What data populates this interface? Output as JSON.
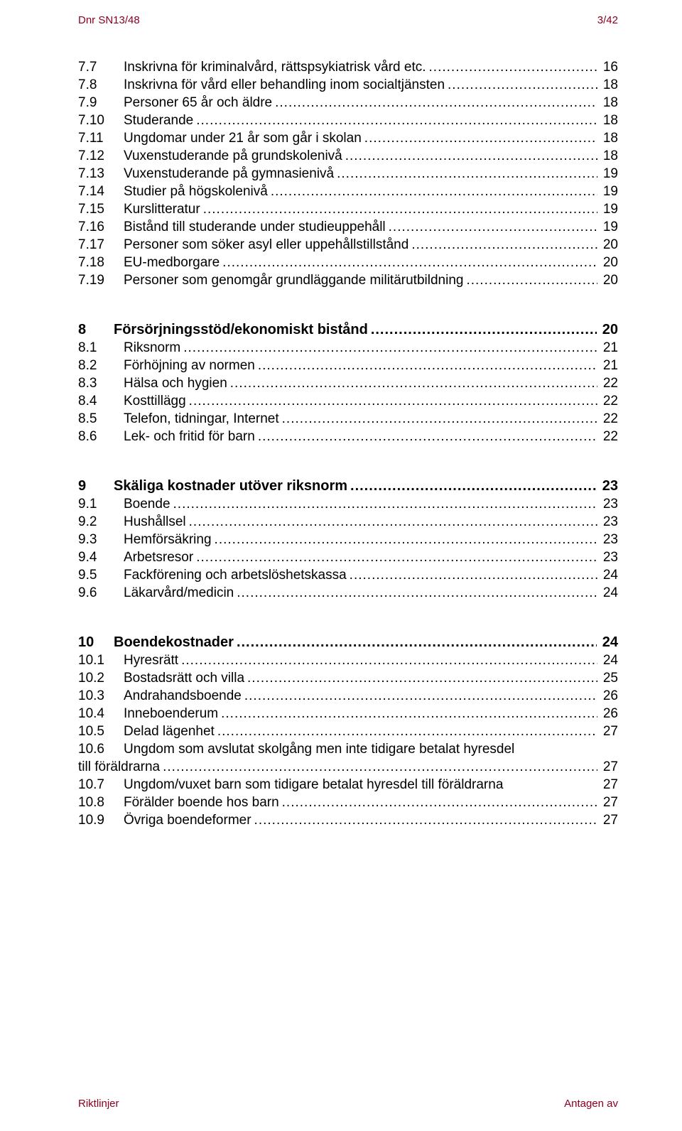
{
  "header": {
    "left": "Dnr SN13/48",
    "right": "3/42"
  },
  "footer": {
    "left": "Riktlinjer",
    "right": "Antagen av"
  },
  "toc": {
    "groups": [
      {
        "heading": null,
        "items": [
          {
            "num": "7.7",
            "label": "Inskrivna för kriminalvård, rättspsykiatrisk vård etc.",
            "page": "16"
          },
          {
            "num": "7.8",
            "label": "Inskrivna för vård eller behandling inom socialtjänsten",
            "page": "18"
          },
          {
            "num": "7.9",
            "label": "Personer 65 år och äldre",
            "page": "18"
          },
          {
            "num": "7.10",
            "label": "Studerande",
            "page": "18"
          },
          {
            "num": "7.11",
            "label": "Ungdomar under 21 år som går i skolan",
            "page": "18"
          },
          {
            "num": "7.12",
            "label": "Vuxenstuderande på grundskolenivå",
            "page": "18"
          },
          {
            "num": "7.13",
            "label": "Vuxenstuderande på gymnasienivå",
            "page": "19"
          },
          {
            "num": "7.14",
            "label": "Studier på högskolenivå",
            "page": "19"
          },
          {
            "num": "7.15",
            "label": "Kurslitteratur",
            "page": "19"
          },
          {
            "num": "7.16",
            "label": "Bistånd till studerande under studieuppehåll",
            "page": "19"
          },
          {
            "num": "7.17",
            "label": "Personer som söker asyl eller uppehållstillstånd",
            "page": "20"
          },
          {
            "num": "7.18",
            "label": "EU-medborgare",
            "page": "20"
          },
          {
            "num": "7.19",
            "label": "Personer som genomgår grundläggande militärutbildning",
            "page": "20"
          }
        ]
      },
      {
        "heading": {
          "num": "8",
          "label": "Försörjningsstöd/ekonomiskt bistånd",
          "page": "20"
        },
        "items": [
          {
            "num": "8.1",
            "label": "Riksnorm",
            "page": "21"
          },
          {
            "num": "8.2",
            "label": "Förhöjning av normen",
            "page": "21"
          },
          {
            "num": "8.3",
            "label": "Hälsa och hygien",
            "page": "22"
          },
          {
            "num": "8.4",
            "label": "Kosttillägg",
            "page": "22"
          },
          {
            "num": "8.5",
            "label": "Telefon, tidningar, Internet",
            "page": "22"
          },
          {
            "num": "8.6",
            "label": "Lek- och fritid för barn",
            "page": "22"
          }
        ]
      },
      {
        "heading": {
          "num": "9",
          "label": "Skäliga kostnader utöver riksnorm",
          "page": "23"
        },
        "items": [
          {
            "num": "9.1",
            "label": "Boende",
            "page": "23"
          },
          {
            "num": "9.2",
            "label": "Hushållsel",
            "page": "23"
          },
          {
            "num": "9.3",
            "label": "Hemförsäkring",
            "page": "23"
          },
          {
            "num": "9.4",
            "label": "Arbetsresor",
            "page": "23"
          },
          {
            "num": "9.5",
            "label": "Fackförening och arbetslöshetskassa",
            "page": "24"
          },
          {
            "num": "9.6",
            "label": "Läkarvård/medicin",
            "page": "24"
          }
        ]
      },
      {
        "heading": {
          "num": "10",
          "label": "Boendekostnader",
          "page": "24"
        },
        "items": [
          {
            "num": "10.1",
            "label": "Hyresrätt",
            "page": "24"
          },
          {
            "num": "10.2",
            "label": "Bostadsrätt och villa",
            "page": "25"
          },
          {
            "num": "10.3",
            "label": "Andrahandsboende",
            "page": "26"
          },
          {
            "num": "10.4",
            "label": "Inneboenderum",
            "page": "26"
          },
          {
            "num": "10.5",
            "label": "Delad lägenhet",
            "page": "27"
          },
          {
            "num": "10.6",
            "label": "Ungdom som avslutat skolgång men inte tidigare betalat hyresdel till föräldrarna",
            "page": "27",
            "wrap": true
          },
          {
            "num": "10.7",
            "label": "Ungdom/vuxet barn som tidigare betalat hyresdel till föräldrarna",
            "page": "27",
            "tight": true
          },
          {
            "num": "10.8",
            "label": "Förälder boende hos barn",
            "page": "27"
          },
          {
            "num": "10.9",
            "label": "Övriga boendeformer",
            "page": "27"
          }
        ]
      }
    ]
  }
}
